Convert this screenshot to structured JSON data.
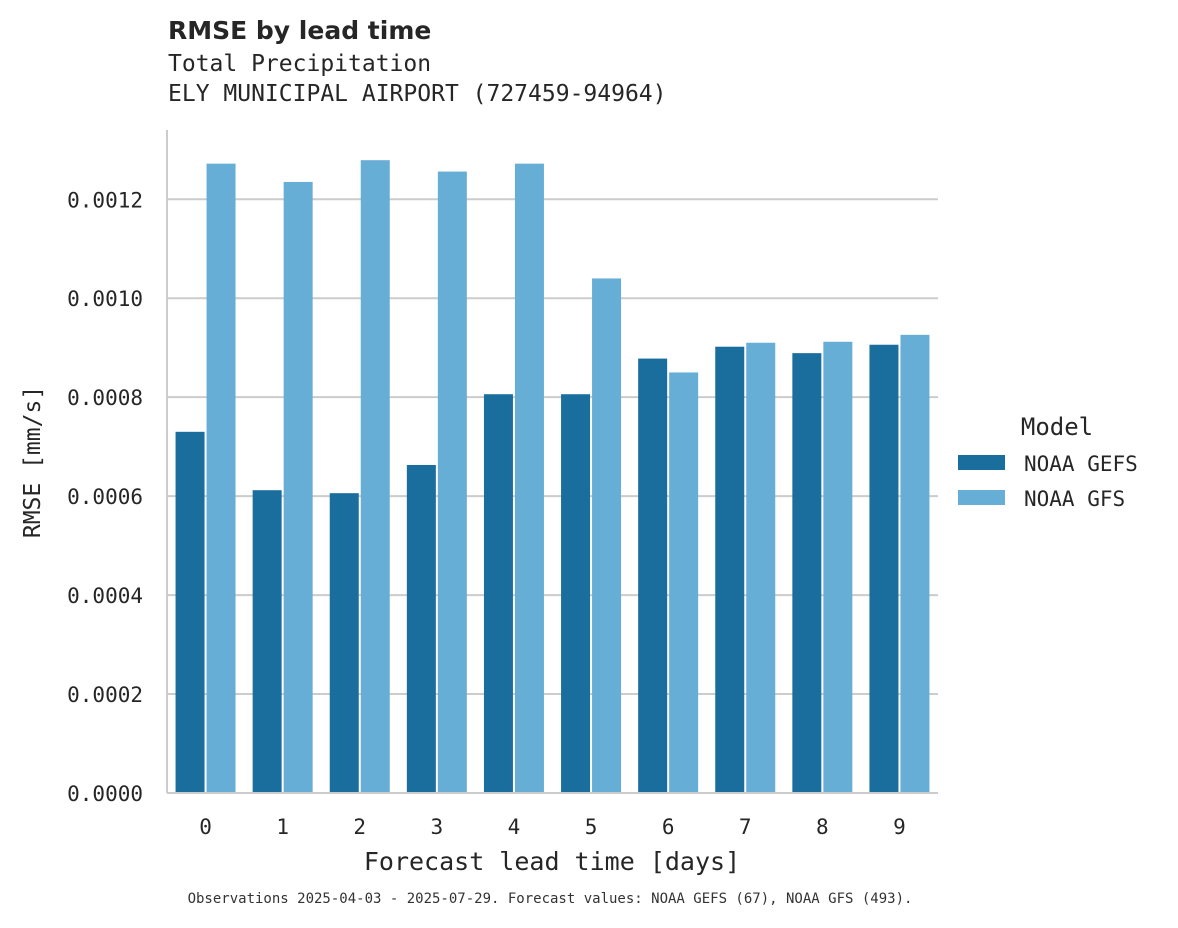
{
  "title": "RMSE by lead time",
  "subtitle_line1": "Total Precipitation",
  "subtitle_line2": "ELY MUNICIPAL AIRPORT (727459-94964)",
  "footnote": "Observations 2025-04-03 - 2025-07-29. Forecast values: NOAA GEFS (67), NOAA GFS (493).",
  "chart_data": {
    "type": "bar",
    "title": "RMSE by lead time",
    "xlabel": "Forecast lead time [days]",
    "ylabel": "RMSE [mm/s]",
    "categories": [
      "0",
      "1",
      "2",
      "3",
      "4",
      "5",
      "6",
      "7",
      "8",
      "9"
    ],
    "ylim": [
      0,
      0.00134
    ],
    "yticks": [
      0.0,
      0.0002,
      0.0004,
      0.0006,
      0.0008,
      0.001,
      0.0012
    ],
    "ytick_labels": [
      "0.0000",
      "0.0002",
      "0.0004",
      "0.0006",
      "0.0008",
      "0.0010",
      "0.0012"
    ],
    "grid": "horizontal",
    "legend_title": "Model",
    "legend_position": "right",
    "series": [
      {
        "name": "NOAA GEFS",
        "color": "#1a6e9e",
        "values": [
          0.00073,
          0.000612,
          0.000606,
          0.000663,
          0.000806,
          0.000806,
          0.000878,
          0.000902,
          0.000889,
          0.000906
        ]
      },
      {
        "name": "NOAA GFS",
        "color": "#67aed7",
        "values": [
          0.001272,
          0.001235,
          0.001279,
          0.001256,
          0.001272,
          0.00104,
          0.00085,
          0.00091,
          0.000912,
          0.000926
        ]
      }
    ]
  }
}
